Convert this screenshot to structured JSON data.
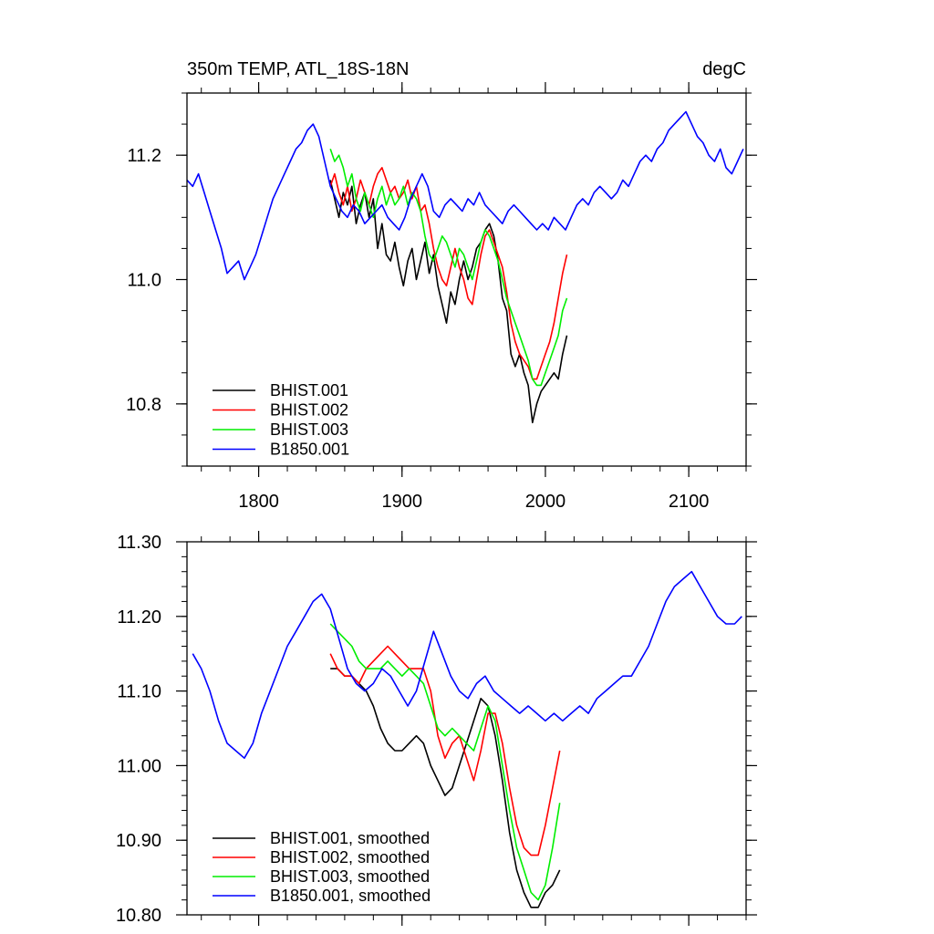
{
  "chart_data": [
    {
      "type": "line",
      "title": "350m TEMP, ATL_18S-18N",
      "units": "degC",
      "xlim": [
        1750,
        2140
      ],
      "ylim": [
        10.7,
        11.3
      ],
      "xticks": [
        1800,
        1900,
        2000,
        2100
      ],
      "xtick_labels": [
        "1800",
        "1900",
        "2000",
        "2100"
      ],
      "yticks": [
        10.8,
        11.0,
        11.2
      ],
      "ytick_labels": [
        "10.8",
        "11.0",
        "11.2"
      ],
      "legend_position": "bottom-left",
      "series": [
        {
          "name": "BHIST.001",
          "color": "#000000",
          "x": [
            1850,
            1853,
            1856,
            1859,
            1862,
            1865,
            1868,
            1871,
            1874,
            1877,
            1880,
            1883,
            1886,
            1889,
            1892,
            1895,
            1898,
            1901,
            1904,
            1907,
            1910,
            1913,
            1916,
            1919,
            1922,
            1925,
            1928,
            1931,
            1934,
            1937,
            1940,
            1943,
            1946,
            1949,
            1952,
            1955,
            1958,
            1961,
            1964,
            1967,
            1970,
            1973,
            1976,
            1979,
            1982,
            1985,
            1988,
            1991,
            1994,
            1997,
            2000,
            2003,
            2006,
            2009,
            2012,
            2015
          ],
          "y": [
            11.16,
            11.13,
            11.1,
            11.14,
            11.12,
            11.15,
            11.09,
            11.12,
            11.14,
            11.1,
            11.13,
            11.05,
            11.09,
            11.04,
            11.03,
            11.06,
            11.02,
            10.99,
            11.03,
            11.05,
            11.0,
            11.03,
            11.06,
            11.01,
            11.04,
            10.99,
            10.96,
            10.93,
            10.98,
            10.96,
            11.0,
            11.03,
            11.0,
            11.02,
            11.05,
            11.06,
            11.08,
            11.09,
            11.07,
            11.03,
            10.97,
            10.95,
            10.88,
            10.86,
            10.88,
            10.85,
            10.83,
            10.77,
            10.8,
            10.82,
            10.83,
            10.84,
            10.85,
            10.84,
            10.88,
            10.91
          ]
        },
        {
          "name": "BHIST.002",
          "color": "#ff0000",
          "x": [
            1850,
            1853,
            1856,
            1859,
            1862,
            1865,
            1868,
            1871,
            1874,
            1877,
            1880,
            1883,
            1886,
            1889,
            1892,
            1895,
            1898,
            1901,
            1904,
            1907,
            1910,
            1913,
            1916,
            1919,
            1922,
            1925,
            1928,
            1931,
            1934,
            1937,
            1940,
            1943,
            1946,
            1949,
            1952,
            1955,
            1958,
            1961,
            1964,
            1967,
            1970,
            1973,
            1976,
            1979,
            1982,
            1985,
            1988,
            1991,
            1994,
            1997,
            2000,
            2003,
            2006,
            2009,
            2012,
            2015
          ],
          "y": [
            11.15,
            11.17,
            11.14,
            11.12,
            11.15,
            11.11,
            11.13,
            11.16,
            11.14,
            11.12,
            11.15,
            11.17,
            11.18,
            11.16,
            11.14,
            11.15,
            11.13,
            11.14,
            11.16,
            11.13,
            11.15,
            11.11,
            11.12,
            11.09,
            11.05,
            11.02,
            11.0,
            10.99,
            11.02,
            11.05,
            11.02,
            11.0,
            10.97,
            10.96,
            11.0,
            11.04,
            11.07,
            11.08,
            11.06,
            11.04,
            11.02,
            10.98,
            10.93,
            10.9,
            10.88,
            10.87,
            10.86,
            10.84,
            10.84,
            10.86,
            10.88,
            10.9,
            10.93,
            10.97,
            11.01,
            11.04
          ]
        },
        {
          "name": "BHIST.003",
          "color": "#00ee00",
          "x": [
            1850,
            1853,
            1856,
            1859,
            1862,
            1865,
            1868,
            1871,
            1874,
            1877,
            1880,
            1883,
            1886,
            1889,
            1892,
            1895,
            1898,
            1901,
            1904,
            1907,
            1910,
            1913,
            1916,
            1919,
            1922,
            1925,
            1928,
            1931,
            1934,
            1937,
            1940,
            1943,
            1946,
            1949,
            1952,
            1955,
            1958,
            1961,
            1964,
            1967,
            1970,
            1973,
            1976,
            1979,
            1982,
            1985,
            1988,
            1991,
            1994,
            1997,
            2000,
            2003,
            2006,
            2009,
            2012,
            2015
          ],
          "y": [
            11.21,
            11.19,
            11.2,
            11.18,
            11.15,
            11.17,
            11.13,
            11.11,
            11.14,
            11.12,
            11.1,
            11.13,
            11.15,
            11.12,
            11.14,
            11.12,
            11.13,
            11.15,
            11.12,
            11.14,
            11.13,
            11.11,
            11.07,
            11.04,
            11.03,
            11.05,
            11.07,
            11.06,
            11.04,
            11.02,
            11.05,
            11.04,
            11.02,
            11.0,
            11.03,
            11.06,
            11.08,
            11.07,
            11.05,
            11.03,
            11.0,
            10.97,
            10.95,
            10.93,
            10.91,
            10.89,
            10.87,
            10.84,
            10.83,
            10.83,
            10.85,
            10.87,
            10.89,
            10.91,
            10.95,
            10.97
          ]
        },
        {
          "name": "B1850.001",
          "color": "#0000ff",
          "x": [
            1750,
            1754,
            1758,
            1762,
            1766,
            1770,
            1774,
            1778,
            1782,
            1786,
            1790,
            1794,
            1798,
            1802,
            1806,
            1810,
            1814,
            1818,
            1822,
            1826,
            1830,
            1834,
            1838,
            1842,
            1846,
            1850,
            1854,
            1858,
            1862,
            1866,
            1870,
            1874,
            1878,
            1882,
            1886,
            1890,
            1894,
            1898,
            1902,
            1906,
            1910,
            1914,
            1918,
            1922,
            1926,
            1930,
            1934,
            1938,
            1942,
            1946,
            1950,
            1954,
            1958,
            1962,
            1966,
            1970,
            1974,
            1978,
            1982,
            1986,
            1990,
            1994,
            1998,
            2002,
            2006,
            2010,
            2014,
            2018,
            2022,
            2026,
            2030,
            2034,
            2038,
            2042,
            2046,
            2050,
            2054,
            2058,
            2062,
            2066,
            2070,
            2074,
            2078,
            2082,
            2086,
            2090,
            2094,
            2098,
            2102,
            2106,
            2110,
            2114,
            2118,
            2122,
            2126,
            2130,
            2134,
            2138
          ],
          "y": [
            11.16,
            11.15,
            11.17,
            11.14,
            11.11,
            11.08,
            11.05,
            11.01,
            11.02,
            11.03,
            11.0,
            11.02,
            11.04,
            11.07,
            11.1,
            11.13,
            11.15,
            11.17,
            11.19,
            11.21,
            11.22,
            11.24,
            11.25,
            11.23,
            11.19,
            11.15,
            11.13,
            11.11,
            11.1,
            11.12,
            11.11,
            11.09,
            11.1,
            11.11,
            11.12,
            11.1,
            11.09,
            11.08,
            11.1,
            11.13,
            11.15,
            11.17,
            11.15,
            11.11,
            11.1,
            11.12,
            11.13,
            11.12,
            11.11,
            11.13,
            11.12,
            11.14,
            11.12,
            11.11,
            11.1,
            11.09,
            11.11,
            11.12,
            11.11,
            11.1,
            11.09,
            11.08,
            11.09,
            11.08,
            11.1,
            11.09,
            11.08,
            11.1,
            11.12,
            11.13,
            11.12,
            11.14,
            11.15,
            11.14,
            11.13,
            11.14,
            11.16,
            11.15,
            11.17,
            11.19,
            11.2,
            11.19,
            11.21,
            11.22,
            11.24,
            11.25,
            11.26,
            11.27,
            11.25,
            11.23,
            11.22,
            11.2,
            11.19,
            11.21,
            11.18,
            11.17,
            11.19,
            11.21
          ]
        }
      ]
    },
    {
      "type": "line",
      "xlim": [
        1750,
        2140
      ],
      "ylim": [
        10.8,
        11.3
      ],
      "xticks": [
        1800,
        1900,
        2000,
        2100
      ],
      "yticks": [
        10.8,
        10.9,
        11.0,
        11.1,
        11.2,
        11.3
      ],
      "ytick_labels": [
        "10.80",
        "10.90",
        "11.00",
        "11.10",
        "11.20",
        "11.30"
      ],
      "legend_position": "bottom-left",
      "series": [
        {
          "name": "BHIST.001, smoothed",
          "color": "#000000",
          "x": [
            1850,
            1855,
            1860,
            1865,
            1870,
            1875,
            1880,
            1885,
            1890,
            1895,
            1900,
            1905,
            1910,
            1915,
            1920,
            1925,
            1930,
            1935,
            1940,
            1945,
            1950,
            1955,
            1960,
            1965,
            1970,
            1975,
            1980,
            1985,
            1990,
            1995,
            2000,
            2005,
            2010
          ],
          "y": [
            11.13,
            11.13,
            11.12,
            11.12,
            11.11,
            11.1,
            11.08,
            11.05,
            11.03,
            11.02,
            11.02,
            11.03,
            11.04,
            11.03,
            11.0,
            10.98,
            10.96,
            10.97,
            11.0,
            11.03,
            11.06,
            11.09,
            11.08,
            11.04,
            10.98,
            10.91,
            10.86,
            10.83,
            10.81,
            10.81,
            10.83,
            10.84,
            10.86
          ]
        },
        {
          "name": "BHIST.002, smoothed",
          "color": "#ff0000",
          "x": [
            1850,
            1855,
            1860,
            1865,
            1870,
            1875,
            1880,
            1885,
            1890,
            1895,
            1900,
            1905,
            1910,
            1915,
            1920,
            1925,
            1930,
            1935,
            1940,
            1945,
            1950,
            1955,
            1960,
            1965,
            1970,
            1975,
            1980,
            1985,
            1990,
            1995,
            2000,
            2005,
            2010
          ],
          "y": [
            11.15,
            11.13,
            11.12,
            11.12,
            11.11,
            11.13,
            11.14,
            11.15,
            11.16,
            11.15,
            11.14,
            11.13,
            11.13,
            11.13,
            11.1,
            11.04,
            11.01,
            11.03,
            11.04,
            11.01,
            10.98,
            11.02,
            11.07,
            11.07,
            11.03,
            10.97,
            10.92,
            10.89,
            10.88,
            10.88,
            10.92,
            10.97,
            11.02
          ]
        },
        {
          "name": "BHIST.003, smoothed",
          "color": "#00ee00",
          "x": [
            1850,
            1855,
            1860,
            1865,
            1870,
            1875,
            1880,
            1885,
            1890,
            1895,
            1900,
            1905,
            1910,
            1915,
            1920,
            1925,
            1930,
            1935,
            1940,
            1945,
            1950,
            1955,
            1960,
            1965,
            1970,
            1975,
            1980,
            1985,
            1990,
            1995,
            2000,
            2005,
            2010
          ],
          "y": [
            11.19,
            11.18,
            11.17,
            11.16,
            11.14,
            11.13,
            11.13,
            11.13,
            11.14,
            11.13,
            11.12,
            11.13,
            11.12,
            11.11,
            11.08,
            11.05,
            11.04,
            11.05,
            11.04,
            11.03,
            11.02,
            11.05,
            11.08,
            11.06,
            11.0,
            10.94,
            10.89,
            10.86,
            10.83,
            10.82,
            10.84,
            10.89,
            10.95
          ]
        },
        {
          "name": "B1850.001, smoothed",
          "color": "#0000ff",
          "x": [
            1754,
            1760,
            1766,
            1772,
            1778,
            1784,
            1790,
            1796,
            1802,
            1808,
            1814,
            1820,
            1826,
            1832,
            1838,
            1844,
            1850,
            1856,
            1862,
            1868,
            1874,
            1880,
            1886,
            1892,
            1898,
            1904,
            1910,
            1916,
            1922,
            1928,
            1934,
            1940,
            1946,
            1952,
            1958,
            1964,
            1970,
            1976,
            1982,
            1988,
            1994,
            2000,
            2006,
            2012,
            2018,
            2024,
            2030,
            2036,
            2042,
            2048,
            2054,
            2060,
            2066,
            2072,
            2078,
            2084,
            2090,
            2096,
            2102,
            2108,
            2114,
            2120,
            2126,
            2132,
            2137
          ],
          "y": [
            11.15,
            11.13,
            11.1,
            11.06,
            11.03,
            11.02,
            11.01,
            11.03,
            11.07,
            11.1,
            11.13,
            11.16,
            11.18,
            11.2,
            11.22,
            11.23,
            11.21,
            11.17,
            11.13,
            11.11,
            11.1,
            11.11,
            11.13,
            11.12,
            11.1,
            11.08,
            11.1,
            11.14,
            11.18,
            11.15,
            11.12,
            11.1,
            11.09,
            11.11,
            11.12,
            11.1,
            11.09,
            11.08,
            11.07,
            11.08,
            11.07,
            11.06,
            11.07,
            11.06,
            11.07,
            11.08,
            11.07,
            11.09,
            11.1,
            11.11,
            11.12,
            11.12,
            11.14,
            11.16,
            11.19,
            11.22,
            11.24,
            11.25,
            11.26,
            11.24,
            11.22,
            11.2,
            11.19,
            11.19,
            11.2
          ]
        }
      ]
    }
  ]
}
